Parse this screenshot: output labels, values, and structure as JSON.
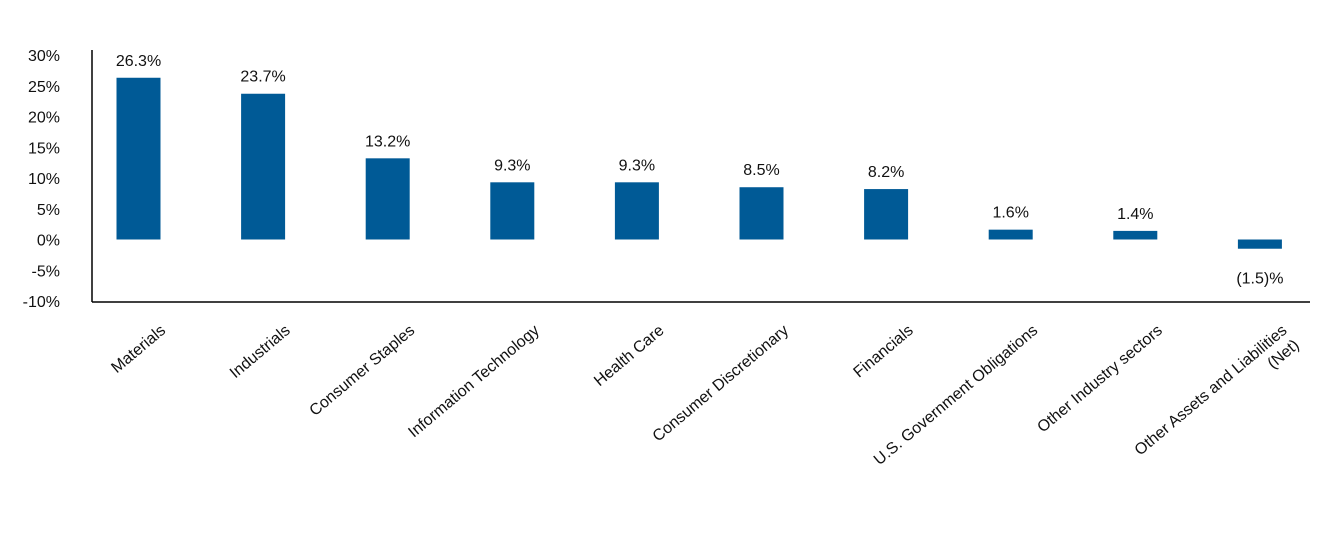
{
  "chart_data": {
    "type": "bar",
    "title": "",
    "xlabel": "",
    "ylabel": "",
    "ylim": [
      -10,
      30
    ],
    "yticks": [
      30,
      25,
      20,
      15,
      10,
      5,
      0,
      -5,
      -10
    ],
    "ytick_labels": [
      "30%",
      "25%",
      "20%",
      "15%",
      "10%",
      "5%",
      "0%",
      "-5%",
      "-10%"
    ],
    "grid": false,
    "categories": [
      "Materials",
      "Industrials",
      "Consumer Staples",
      "Information Technology",
      "Health Care",
      "Consumer Discretionary",
      "Financials",
      "U.S. Government Obligations",
      "Other Industry sectors",
      [
        "Other Assets and Liabilities",
        "(Net)"
      ]
    ],
    "values": [
      26.3,
      23.7,
      13.2,
      9.3,
      9.3,
      8.5,
      8.2,
      1.6,
      1.4,
      -1.5
    ],
    "data_labels": [
      "26.3%",
      "23.7%",
      "13.2%",
      "9.3%",
      "9.3%",
      "8.5%",
      "8.2%",
      "1.6%",
      "1.4%",
      "(1.5)%"
    ],
    "colors": {
      "bar": "#005A96",
      "axis": "#000000"
    }
  }
}
